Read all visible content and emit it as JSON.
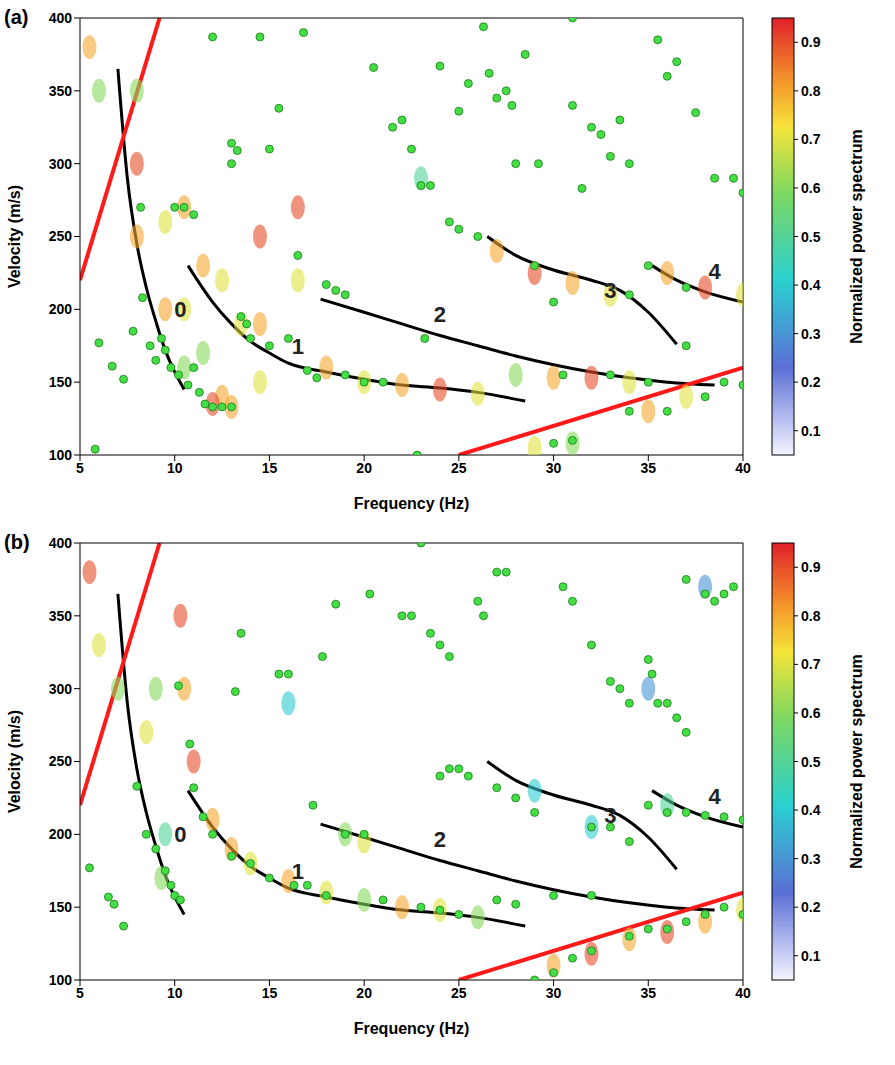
{
  "chart_data": [
    {
      "panel": "(a)",
      "type": "contour",
      "x_label": "Frequency (Hz)",
      "y_label": "Velocity (m/s)",
      "xlim": [
        5,
        40
      ],
      "xticks": [
        5,
        10,
        15,
        20,
        25,
        30,
        35,
        40
      ],
      "ylim": [
        100,
        400
      ],
      "yticks": [
        100,
        150,
        200,
        250,
        300,
        350,
        400
      ],
      "colorbar": {
        "label": "Normalized power spectrum",
        "lim": [
          0.05,
          0.95
        ],
        "ticks": [
          0.1,
          0.2,
          0.3,
          0.4,
          0.5,
          0.6,
          0.7,
          0.8,
          0.9
        ]
      },
      "spectrum": [
        [
          8,
          300,
          0.9
        ],
        [
          8,
          250,
          0.8
        ],
        [
          8,
          350,
          0.6
        ],
        [
          9.5,
          260,
          0.7
        ],
        [
          9.5,
          200,
          0.8
        ],
        [
          10.5,
          270,
          0.8
        ],
        [
          10.5,
          200,
          0.7
        ],
        [
          10.5,
          160,
          0.6
        ],
        [
          11.5,
          230,
          0.8
        ],
        [
          11.5,
          170,
          0.6
        ],
        [
          12.5,
          220,
          0.7
        ],
        [
          12.5,
          140,
          0.8
        ],
        [
          13.5,
          190,
          0.7
        ],
        [
          14.5,
          250,
          0.9
        ],
        [
          14.5,
          190,
          0.8
        ],
        [
          14.5,
          150,
          0.7
        ],
        [
          16.5,
          270,
          0.9
        ],
        [
          16.5,
          220,
          0.7
        ],
        [
          5.5,
          380,
          0.8
        ],
        [
          6,
          350,
          0.6
        ],
        [
          18,
          160,
          0.8
        ],
        [
          20,
          150,
          0.7
        ],
        [
          22,
          148,
          0.8
        ],
        [
          24,
          145,
          0.9
        ],
        [
          26,
          142,
          0.7
        ],
        [
          28,
          155,
          0.6
        ],
        [
          30,
          153,
          0.8
        ],
        [
          32,
          153,
          0.9
        ],
        [
          34,
          150,
          0.7
        ],
        [
          23,
          290,
          0.5
        ],
        [
          27,
          240,
          0.8
        ],
        [
          29,
          225,
          0.9
        ],
        [
          31,
          218,
          0.8
        ],
        [
          33,
          210,
          0.7
        ],
        [
          36,
          225,
          0.8
        ],
        [
          38,
          215,
          0.9
        ],
        [
          40,
          210,
          0.7
        ],
        [
          35,
          130,
          0.8
        ],
        [
          37,
          140,
          0.7
        ],
        [
          29,
          105,
          0.7
        ],
        [
          31,
          108,
          0.6
        ],
        [
          12,
          135,
          0.9
        ],
        [
          13,
          133,
          0.8
        ]
      ],
      "series": [
        {
          "name": "0",
          "type": "line",
          "color": "#000000",
          "x": [
            7,
            7.5,
            8,
            8.5,
            9,
            9.5,
            10,
            10.5
          ],
          "values": [
            365,
            290,
            245,
            215,
            192,
            172,
            157,
            145
          ],
          "label_at": [
            10.3,
            200
          ]
        },
        {
          "name": "1",
          "type": "line",
          "color": "#000000",
          "x": [
            10.7,
            12,
            13,
            14,
            15,
            16,
            18,
            20,
            22,
            24,
            26,
            28.5
          ],
          "values": [
            230,
            205,
            190,
            178,
            170,
            163,
            157,
            152,
            148,
            146,
            143,
            137
          ],
          "label_at": [
            16.5,
            175
          ]
        },
        {
          "name": "2",
          "type": "line",
          "color": "#000000",
          "x": [
            17.7,
            20,
            22,
            24,
            26,
            28,
            30,
            32,
            34,
            36,
            38.5
          ],
          "values": [
            207,
            198,
            190,
            182,
            175,
            168,
            162,
            157,
            153,
            150,
            148
          ],
          "label_at": [
            24,
            197
          ]
        },
        {
          "name": "3",
          "type": "line",
          "color": "#000000",
          "x": [
            26.5,
            28,
            30,
            32,
            33.5,
            35,
            36.5
          ],
          "values": [
            250,
            237,
            227,
            220,
            213,
            198,
            176
          ],
          "label_at": [
            33,
            213
          ]
        },
        {
          "name": "4",
          "type": "line",
          "color": "#000000",
          "x": [
            35.2,
            36.5,
            38,
            40
          ],
          "values": [
            230,
            220,
            212,
            205
          ],
          "label_at": [
            38.5,
            226
          ]
        },
        {
          "type": "line",
          "line_style": "straight",
          "color": "#ff1a1a",
          "x": [
            5,
            9.2
          ],
          "values": [
            220,
            400
          ]
        },
        {
          "type": "line",
          "line_style": "straight",
          "color": "#ff1a1a",
          "x": [
            25,
            40
          ],
          "values": [
            100,
            160
          ]
        },
        {
          "type": "scatter",
          "marker": "circle",
          "color": "#44dd44",
          "x": [
            5.8,
            6,
            6.7,
            7.3,
            7.8,
            8.2,
            8.3,
            8.7,
            9,
            9.3,
            9.5,
            9.8,
            10,
            10.2,
            10.5,
            10.7,
            11,
            11,
            11.3,
            11.6,
            12,
            12,
            12.5,
            13,
            13,
            13,
            13.3,
            13.5,
            13.8,
            14.5,
            14,
            15,
            15,
            15.5,
            16,
            16.5,
            16.8,
            17,
            17.5,
            18,
            18.5,
            19,
            19,
            20,
            20.5,
            21,
            21.5,
            22,
            22.5,
            23,
            23.5,
            23.2,
            22.8,
            24,
            24.5,
            25,
            25,
            25.5,
            26,
            26.3,
            26.6,
            27,
            27.5,
            27.8,
            28,
            28.5,
            29.2,
            29,
            30,
            30,
            31,
            30.5,
            31.5,
            31,
            31,
            32,
            32.5,
            33,
            33.5,
            33,
            34,
            34,
            35,
            35.5,
            36,
            36.5,
            37,
            37.5,
            37,
            38,
            38.5,
            39,
            39.5,
            40,
            40,
            36,
            34,
            35
          ],
          "values": [
            104,
            177,
            161,
            152,
            185,
            270,
            208,
            175,
            165,
            180,
            172,
            160,
            270,
            155,
            270,
            148,
            265,
            160,
            143,
            135,
            387,
            133,
            133,
            300,
            314,
            133,
            309,
            195,
            190,
            387,
            180,
            310,
            175,
            338,
            180,
            237,
            390,
            158,
            153,
            217,
            213,
            210,
            155,
            150,
            366,
            150,
            325,
            330,
            310,
            285,
            285,
            180,
            100,
            367,
            260,
            255,
            336,
            355,
            250,
            394,
            362,
            345,
            350,
            340,
            300,
            375,
            300,
            230,
            205,
            108,
            110,
            155,
            283,
            340,
            400,
            325,
            320,
            305,
            330,
            155,
            300,
            210,
            230,
            385,
            360,
            370,
            175,
            335,
            215,
            140,
            290,
            150,
            290,
            280,
            148,
            130,
            130,
            150
          ]
        }
      ]
    },
    {
      "panel": "(b)",
      "type": "contour",
      "x_label": "Frequency (Hz)",
      "y_label": "Velocity (m/s)",
      "xlim": [
        5,
        40
      ],
      "xticks": [
        5,
        10,
        15,
        20,
        25,
        30,
        35,
        40
      ],
      "ylim": [
        100,
        400
      ],
      "yticks": [
        100,
        150,
        200,
        250,
        300,
        350,
        400
      ],
      "colorbar": {
        "label": "Normalized power spectrum",
        "lim": [
          0.05,
          0.95
        ],
        "ticks": [
          0.1,
          0.2,
          0.3,
          0.4,
          0.5,
          0.6,
          0.7,
          0.8,
          0.9
        ]
      },
      "spectrum": [
        [
          5.5,
          380,
          0.9
        ],
        [
          6,
          330,
          0.7
        ],
        [
          7,
          300,
          0.6
        ],
        [
          8.5,
          270,
          0.7
        ],
        [
          9,
          300,
          0.6
        ],
        [
          10.3,
          350,
          0.9
        ],
        [
          10.5,
          300,
          0.8
        ],
        [
          11,
          250,
          0.9
        ],
        [
          12,
          210,
          0.8
        ],
        [
          13,
          190,
          0.8
        ],
        [
          14,
          180,
          0.7
        ],
        [
          16,
          168,
          0.8
        ],
        [
          18,
          160,
          0.7
        ],
        [
          20,
          155,
          0.6
        ],
        [
          22,
          150,
          0.8
        ],
        [
          24,
          148,
          0.7
        ],
        [
          26,
          143,
          0.6
        ],
        [
          19,
          200,
          0.6
        ],
        [
          20,
          195,
          0.7
        ],
        [
          9.5,
          200,
          0.5
        ],
        [
          9.3,
          170,
          0.6
        ],
        [
          16,
          290,
          0.4
        ],
        [
          29,
          230,
          0.4
        ],
        [
          32,
          205,
          0.4
        ],
        [
          36,
          220,
          0.5
        ],
        [
          30,
          110,
          0.8
        ],
        [
          32,
          118,
          0.9
        ],
        [
          34,
          128,
          0.8
        ],
        [
          36,
          133,
          0.9
        ],
        [
          38,
          140,
          0.8
        ],
        [
          40,
          148,
          0.7
        ],
        [
          35,
          300,
          0.3
        ],
        [
          38,
          370,
          0.3
        ]
      ],
      "series": [
        {
          "name": "0",
          "type": "line",
          "color": "#000000",
          "x": [
            7,
            7.5,
            8,
            8.5,
            9,
            9.5,
            10,
            10.5
          ],
          "values": [
            365,
            290,
            245,
            215,
            192,
            172,
            157,
            145
          ],
          "label_at": [
            10.3,
            200
          ]
        },
        {
          "name": "1",
          "type": "line",
          "color": "#000000",
          "x": [
            10.7,
            12,
            13,
            14,
            15,
            16,
            18,
            20,
            22,
            24,
            26,
            28.5
          ],
          "values": [
            230,
            205,
            190,
            178,
            170,
            163,
            157,
            152,
            148,
            146,
            143,
            137
          ],
          "label_at": [
            16.5,
            175
          ]
        },
        {
          "name": "2",
          "type": "line",
          "color": "#000000",
          "x": [
            17.7,
            20,
            22,
            24,
            26,
            28,
            30,
            32,
            34,
            36,
            38.5
          ],
          "values": [
            207,
            198,
            190,
            182,
            175,
            168,
            162,
            157,
            153,
            150,
            148
          ],
          "label_at": [
            24,
            197
          ]
        },
        {
          "name": "3",
          "type": "line",
          "color": "#000000",
          "x": [
            26.5,
            28,
            30,
            32,
            33.5,
            35,
            36.5
          ],
          "values": [
            250,
            237,
            227,
            220,
            213,
            198,
            176
          ],
          "label_at": [
            33,
            213
          ]
        },
        {
          "name": "4",
          "type": "line",
          "color": "#000000",
          "x": [
            35.2,
            36.5,
            38,
            40
          ],
          "values": [
            230,
            220,
            212,
            205
          ],
          "label_at": [
            38.5,
            226
          ]
        },
        {
          "type": "line",
          "line_style": "straight",
          "color": "#ff1a1a",
          "x": [
            5,
            9.2
          ],
          "values": [
            220,
            400
          ]
        },
        {
          "type": "line",
          "line_style": "straight",
          "color": "#ff1a1a",
          "x": [
            25,
            40
          ],
          "values": [
            100,
            160
          ]
        },
        {
          "type": "scatter",
          "marker": "circle",
          "color": "#44dd44",
          "x": [
            5.5,
            6.5,
            6.8,
            7.3,
            8,
            8.5,
            9,
            9.5,
            9.8,
            10,
            10.3,
            10.2,
            10.8,
            11,
            11.5,
            12,
            13,
            13.5,
            13.2,
            14,
            15,
            15.5,
            16,
            16.3,
            17,
            17.3,
            17.8,
            18,
            18.5,
            19,
            20,
            20.3,
            21,
            22,
            22.5,
            23,
            23,
            23.5,
            24,
            24.5,
            24,
            25,
            24,
            24.5,
            25,
            25.5,
            26,
            26.3,
            27,
            27.5,
            27,
            28,
            29,
            29,
            30,
            30.5,
            31,
            32,
            31,
            32,
            33,
            33.5,
            34,
            32,
            33,
            34,
            35,
            35.2,
            35.5,
            36,
            36.5,
            37,
            37,
            38,
            38.5,
            39,
            39.5,
            35,
            36,
            37,
            38,
            39,
            40,
            34,
            35,
            36,
            37,
            38,
            39,
            40,
            27,
            28,
            30,
            32
          ],
          "values": [
            177,
            157,
            152,
            137,
            233,
            200,
            190,
            175,
            165,
            158,
            155,
            302,
            262,
            232,
            212,
            200,
            185,
            338,
            298,
            180,
            170,
            310,
            310,
            165,
            165,
            220,
            322,
            158,
            358,
            200,
            200,
            365,
            155,
            350,
            350,
            400,
            150,
            338,
            330,
            322,
            148,
            145,
            240,
            245,
            245,
            240,
            360,
            350,
            380,
            380,
            232,
            225,
            215,
            100,
            105,
            370,
            360,
            330,
            115,
            120,
            305,
            300,
            290,
            205,
            205,
            195,
            320,
            310,
            290,
            290,
            280,
            375,
            270,
            365,
            360,
            365,
            370,
            220,
            215,
            215,
            213,
            212,
            210,
            130,
            135,
            135,
            140,
            145,
            150,
            145,
            155,
            152,
            158,
            158
          ]
        }
      ]
    }
  ]
}
